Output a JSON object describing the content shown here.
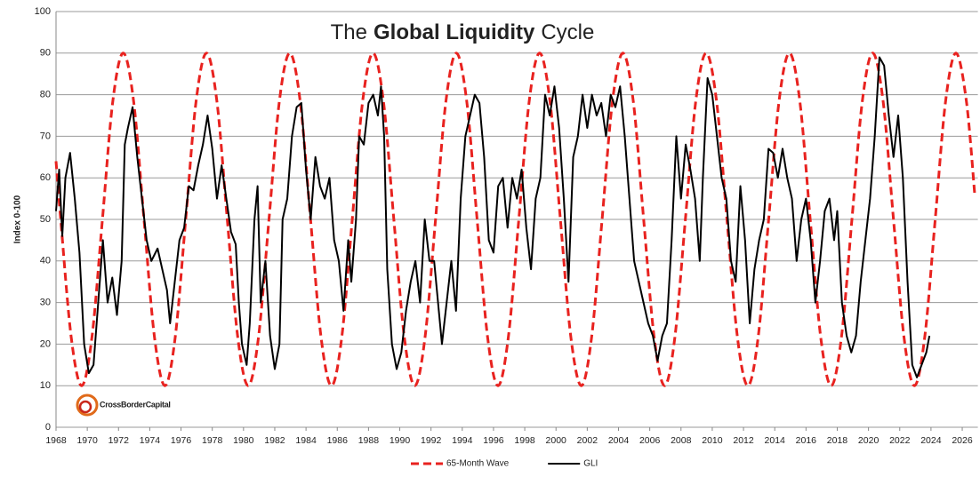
{
  "chart_data": {
    "type": "line",
    "title": [
      "The",
      "Global Liquidity",
      "Cycle"
    ],
    "y_label": "Index 0-100",
    "annotation": "CrossBorderCapital",
    "xlim": [
      1968,
      2027
    ],
    "ylim": [
      0,
      100
    ],
    "xticks": [
      1968,
      1970,
      1972,
      1974,
      1976,
      1978,
      1980,
      1982,
      1984,
      1986,
      1988,
      1990,
      1992,
      1994,
      1996,
      1998,
      2000,
      2002,
      2004,
      2006,
      2008,
      2010,
      2012,
      2014,
      2016,
      2018,
      2020,
      2022,
      2024,
      2026
    ],
    "yticks": [
      0,
      10,
      20,
      30,
      40,
      50,
      60,
      70,
      80,
      90,
      100
    ],
    "grid": true,
    "legend": "bottom",
    "series": [
      {
        "name": "65-Month Wave",
        "color": "#e8221f",
        "dashed": true,
        "smooth": true,
        "x": [
          1968.0,
          1968.3,
          1968.97,
          1969.64,
          1970.3,
          1970.97,
          1971.63,
          1972.3,
          1972.97,
          1973.63,
          1974.3,
          1974.97,
          1975.63,
          1976.3,
          1976.96,
          1977.63,
          1978.3,
          1978.96,
          1979.63,
          1980.3,
          1980.96,
          1981.63,
          1982.29,
          1982.96,
          1983.63,
          1984.29,
          1984.96,
          1985.63,
          1986.29,
          1986.96,
          1987.62,
          1988.29,
          1988.96,
          1989.62,
          1990.29,
          1990.96,
          1991.62,
          1992.29,
          1992.95,
          1993.62,
          1994.29,
          1994.95,
          1995.62,
          1996.29,
          1996.95,
          1997.62,
          1998.28,
          1998.95,
          1999.62,
          2000.28,
          2000.95,
          2001.62,
          2002.28,
          2002.95,
          2003.61,
          2004.28,
          2004.95,
          2005.61,
          2006.28,
          2006.95,
          2007.61,
          2008.28,
          2008.94,
          2009.61,
          2010.28,
          2010.94,
          2011.61,
          2012.28,
          2012.94,
          2013.61,
          2014.27,
          2014.94,
          2015.61,
          2016.27,
          2016.94,
          2017.61,
          2018.27,
          2018.94,
          2019.6,
          2020.27,
          2020.94,
          2021.6,
          2022.27,
          2022.94,
          2023.6,
          2024.27,
          2024.93,
          2025.6,
          2026.27,
          2026.8
        ],
        "values": [
          64,
          50,
          21.7,
          10,
          21.7,
          50,
          78.3,
          90,
          78.3,
          50,
          21.7,
          10,
          21.7,
          50,
          78.3,
          90,
          78.3,
          50,
          21.7,
          10,
          21.7,
          50,
          78.3,
          90,
          78.3,
          50,
          21.7,
          10,
          21.7,
          50,
          78.3,
          90,
          78.3,
          50,
          21.7,
          10,
          21.7,
          50,
          78.3,
          90,
          78.3,
          50,
          21.7,
          10,
          21.7,
          50,
          78.3,
          90,
          78.3,
          50,
          21.7,
          10,
          21.7,
          50,
          78.3,
          90,
          78.3,
          50,
          21.7,
          10,
          21.7,
          50,
          78.3,
          90,
          78.3,
          50,
          21.7,
          10,
          21.7,
          50,
          78.3,
          90,
          78.3,
          50,
          21.7,
          10,
          21.7,
          50,
          78.3,
          90,
          78.3,
          50,
          21.7,
          10,
          21.7,
          50,
          78.3,
          90,
          78.3,
          56
        ]
      },
      {
        "name": "GLI",
        "color": "#000000",
        "dashed": false,
        "smooth": false,
        "x": [
          1968.0,
          1968.2,
          1968.4,
          1968.6,
          1968.9,
          1969.2,
          1969.5,
          1969.8,
          1970.1,
          1970.4,
          1970.7,
          1971.0,
          1971.3,
          1971.6,
          1971.9,
          1972.2,
          1972.4,
          1972.6,
          1972.9,
          1973.2,
          1973.5,
          1973.8,
          1974.1,
          1974.5,
          1974.8,
          1975.1,
          1975.3,
          1975.6,
          1975.9,
          1976.2,
          1976.5,
          1976.8,
          1977.1,
          1977.4,
          1977.7,
          1978.0,
          1978.3,
          1978.6,
          1978.9,
          1979.2,
          1979.5,
          1979.7,
          1979.9,
          1980.2,
          1980.4,
          1980.7,
          1980.9,
          1981.1,
          1981.4,
          1981.7,
          1982.0,
          1982.3,
          1982.5,
          1982.8,
          1983.1,
          1983.4,
          1983.7,
          1984.0,
          1984.3,
          1984.6,
          1984.9,
          1985.2,
          1985.5,
          1985.8,
          1986.1,
          1986.4,
          1986.7,
          1986.9,
          1987.2,
          1987.4,
          1987.7,
          1988.0,
          1988.3,
          1988.6,
          1988.8,
          1989.0,
          1989.2,
          1989.5,
          1989.8,
          1990.1,
          1990.4,
          1990.7,
          1991.0,
          1991.3,
          1991.6,
          1991.9,
          1992.2,
          1992.5,
          1992.7,
          1993.0,
          1993.3,
          1993.6,
          1993.9,
          1994.2,
          1994.5,
          1994.8,
          1995.1,
          1995.4,
          1995.7,
          1996.0,
          1996.3,
          1996.6,
          1996.9,
          1997.2,
          1997.5,
          1997.8,
          1998.1,
          1998.4,
          1998.7,
          1999.0,
          1999.3,
          1999.6,
          1999.9,
          2000.2,
          2000.5,
          2000.8,
          2001.1,
          2001.4,
          2001.7,
          2002.0,
          2002.3,
          2002.6,
          2002.9,
          2003.2,
          2003.5,
          2003.8,
          2004.1,
          2004.4,
          2004.7,
          2005.0,
          2005.3,
          2005.6,
          2005.9,
          2006.2,
          2006.5,
          2006.8,
          2007.1,
          2007.4,
          2007.7,
          2008.0,
          2008.3,
          2008.6,
          2008.9,
          2009.2,
          2009.4,
          2009.7,
          2010.0,
          2010.3,
          2010.6,
          2010.9,
          2011.2,
          2011.5,
          2011.8,
          2012.1,
          2012.4,
          2012.7,
          2013.0,
          2013.3,
          2013.6,
          2013.9,
          2014.2,
          2014.5,
          2014.8,
          2015.1,
          2015.4,
          2015.7,
          2016.0,
          2016.3,
          2016.6,
          2016.9,
          2017.2,
          2017.5,
          2017.8,
          2018.0,
          2018.3,
          2018.6,
          2018.9,
          2019.2,
          2019.5,
          2019.8,
          2020.1,
          2020.4,
          2020.7,
          2021.0,
          2021.3,
          2021.6,
          2021.9,
          2022.2,
          2022.5,
          2022.8,
          2023.1,
          2023.4,
          2023.7,
          2023.9
        ],
        "values": [
          52,
          62,
          46,
          60,
          66,
          55,
          42,
          20,
          13,
          15,
          30,
          45,
          30,
          36,
          27,
          40,
          68,
          72,
          77,
          65,
          55,
          45,
          40,
          43,
          38,
          33,
          25,
          35,
          45,
          48,
          58,
          57,
          63,
          68,
          75,
          67,
          55,
          63,
          55,
          47,
          44,
          30,
          20,
          15,
          25,
          50,
          58,
          30,
          40,
          22,
          14,
          20,
          50,
          55,
          70,
          77,
          78,
          62,
          50,
          65,
          58,
          55,
          60,
          45,
          40,
          28,
          45,
          35,
          50,
          70,
          68,
          78,
          80,
          75,
          82,
          70,
          38,
          20,
          14,
          18,
          28,
          35,
          40,
          30,
          50,
          40,
          40,
          28,
          20,
          30,
          40,
          28,
          55,
          70,
          75,
          80,
          78,
          65,
          45,
          42,
          58,
          60,
          48,
          60,
          55,
          62,
          48,
          38,
          55,
          60,
          80,
          75,
          82,
          72,
          55,
          35,
          65,
          70,
          80,
          72,
          80,
          75,
          78,
          70,
          80,
          77,
          82,
          70,
          55,
          40,
          35,
          30,
          25,
          22,
          16,
          22,
          25,
          45,
          70,
          55,
          68,
          62,
          55,
          40,
          60,
          84,
          80,
          70,
          60,
          55,
          40,
          35,
          58,
          45,
          25,
          38,
          45,
          50,
          67,
          66,
          60,
          67,
          60,
          55,
          40,
          50,
          55,
          45,
          30,
          40,
          52,
          55,
          45,
          52,
          30,
          22,
          18,
          22,
          35,
          45,
          55,
          70,
          89,
          87,
          75,
          65,
          75,
          60,
          35,
          15,
          12,
          15,
          18,
          22
        ]
      }
    ]
  }
}
